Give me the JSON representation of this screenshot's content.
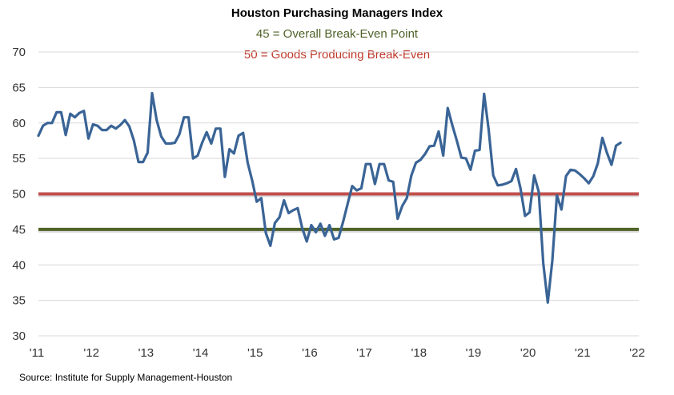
{
  "chart_data": {
    "type": "line",
    "title": "Houston Purchasing Managers Index",
    "subtitles": [
      {
        "text": "45 = Overall Break-Even Point",
        "color": "#4f6228"
      },
      {
        "text": "50 = Goods Producing Break-Even",
        "color": "#c0392b"
      }
    ],
    "source": "Source: Institute for Supply Management-Houston",
    "xlim": [
      2011,
      2022
    ],
    "ylim": [
      30,
      70
    ],
    "ytick_values": [
      30,
      35,
      40,
      45,
      50,
      55,
      60,
      65,
      70
    ],
    "ytick_labels": [
      "30",
      "35",
      "40",
      "45",
      "50",
      "55",
      "60",
      "65",
      "70"
    ],
    "xtick_values": [
      2011,
      2012,
      2013,
      2014,
      2015,
      2016,
      2017,
      2018,
      2019,
      2020,
      2021,
      2022
    ],
    "xtick_labels": [
      "'11",
      "'12",
      "'13",
      "'14",
      "'15",
      "'16",
      "'17",
      "'18",
      "'19",
      "'20",
      "'21",
      "'22"
    ],
    "reference_lines": [
      {
        "name": "Goods Producing Break-Even",
        "value": 50,
        "color": "#c0504d"
      },
      {
        "name": "Overall Break-Even Point",
        "value": 45,
        "color": "#4f6228"
      }
    ],
    "series": [
      {
        "name": "Houston PMI",
        "color": "#3a6496",
        "start": 2011.0,
        "step": 0.08333,
        "values": [
          58.2,
          59.6,
          60.0,
          60.0,
          61.5,
          61.5,
          58.3,
          61.3,
          60.8,
          61.4,
          61.7,
          57.8,
          59.8,
          59.6,
          59.0,
          59.0,
          59.6,
          59.2,
          59.7,
          60.4,
          59.5,
          57.5,
          54.5,
          54.5,
          55.8,
          64.2,
          60.4,
          58.1,
          57.1,
          57.1,
          57.2,
          58.4,
          60.8,
          60.8,
          55.0,
          55.4,
          57.2,
          58.7,
          57.1,
          59.2,
          59.2,
          52.4,
          56.3,
          55.7,
          58.2,
          58.6,
          54.4,
          51.9,
          48.9,
          49.4,
          44.5,
          42.7,
          45.9,
          46.7,
          49.1,
          47.3,
          47.7,
          48.0,
          45.2,
          43.3,
          45.6,
          44.6,
          45.8,
          44.1,
          45.6,
          43.6,
          43.8,
          46.1,
          48.6,
          51.1,
          50.5,
          50.8,
          54.2,
          54.2,
          51.4,
          54.2,
          54.2,
          51.9,
          51.7,
          46.5,
          48.3,
          49.4,
          52.6,
          54.4,
          54.8,
          55.6,
          56.7,
          56.8,
          58.8,
          55.4,
          62.1,
          59.7,
          57.5,
          55.1,
          55.0,
          53.4,
          56.1,
          56.2,
          64.1,
          59.0,
          52.6,
          51.2,
          51.3,
          51.5,
          51.8,
          53.5,
          50.8,
          46.9,
          47.4,
          52.6,
          50.3,
          40.2,
          34.7,
          40.6,
          49.8,
          47.8,
          52.5,
          53.4,
          53.3,
          52.8,
          52.2,
          51.5,
          52.5,
          54.3,
          57.9,
          55.8,
          54.1,
          56.8,
          57.2
        ]
      }
    ]
  }
}
